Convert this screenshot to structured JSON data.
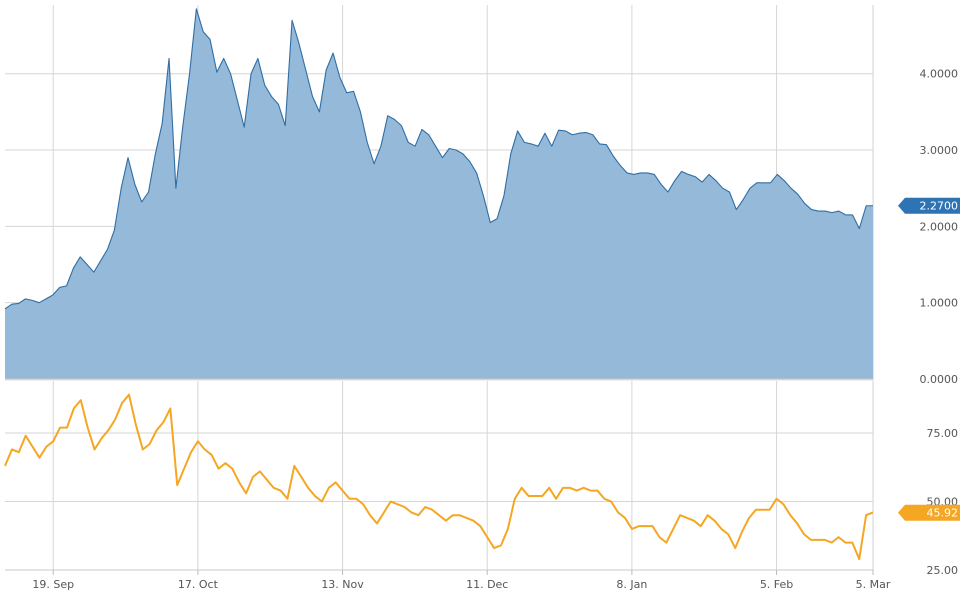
{
  "chart_data": [
    {
      "type": "area",
      "title": "",
      "xlabel": "",
      "ylabel": "",
      "ylim": [
        0,
        4.9
      ],
      "y_ticks": [
        "4.0000",
        "3.0000",
        "2.0000",
        "1.0000",
        "0.0000"
      ],
      "y_tick_values": [
        4,
        3,
        2,
        1,
        0
      ],
      "grid": true,
      "current_value_label": "2.2700",
      "current_value": 2.27,
      "colors": {
        "fill": "#95b9d8",
        "line": "#2f6ea5",
        "badge": "#2e74b5",
        "grid": "#d6d6d6"
      },
      "series": [
        {
          "values": [
            0.92,
            0.98,
            0.99,
            1.05,
            1.03,
            1.0,
            1.05,
            1.1,
            1.2,
            1.22,
            1.45,
            1.6,
            1.5,
            1.4,
            1.55,
            1.7,
            1.95,
            2.5,
            2.9,
            2.55,
            2.32,
            2.45,
            2.95,
            3.35,
            4.2,
            2.5,
            3.3,
            4.0,
            4.85,
            4.55,
            4.45,
            4.02,
            4.2,
            4.0,
            3.65,
            3.3,
            4.0,
            4.2,
            3.85,
            3.7,
            3.6,
            3.32,
            4.7,
            4.4,
            4.05,
            3.7,
            3.5,
            4.05,
            4.27,
            3.95,
            3.75,
            3.77,
            3.5,
            3.1,
            2.82,
            3.05,
            3.45,
            3.4,
            3.32,
            3.1,
            3.05,
            3.27,
            3.2,
            3.05,
            2.9,
            3.02,
            3.0,
            2.95,
            2.85,
            2.7,
            2.4,
            2.05,
            2.1,
            2.4,
            2.95,
            3.25,
            3.1,
            3.08,
            3.05,
            3.22,
            3.05,
            3.26,
            3.25,
            3.2,
            3.22,
            3.23,
            3.2,
            3.08,
            3.07,
            2.92,
            2.8,
            2.7,
            2.68,
            2.7,
            2.7,
            2.68,
            2.55,
            2.45,
            2.6,
            2.72,
            2.68,
            2.65,
            2.58,
            2.68,
            2.6,
            2.5,
            2.45,
            2.22,
            2.35,
            2.5,
            2.57,
            2.57,
            2.57,
            2.68,
            2.6,
            2.5,
            2.42,
            2.3,
            2.22,
            2.2,
            2.2,
            2.18,
            2.2,
            2.15,
            2.15,
            1.97,
            2.27,
            2.27
          ]
        }
      ]
    },
    {
      "type": "line",
      "title": "",
      "xlabel": "",
      "ylabel": "",
      "ylim": [
        25,
        94
      ],
      "y_ticks": [
        "75.00",
        "50.00",
        "25.00"
      ],
      "y_tick_values": [
        75,
        50,
        25
      ],
      "grid": true,
      "current_value_label": "45.92",
      "current_value": 45.92,
      "colors": {
        "line": "#f5a623",
        "badge": "#f5a623",
        "grid": "#d6d6d6"
      },
      "series": [
        {
          "values": [
            63,
            69,
            68,
            74,
            70,
            66,
            70,
            72,
            77,
            77,
            84,
            87,
            77,
            69,
            73,
            76,
            80,
            86,
            89,
            78,
            69,
            71,
            76,
            79,
            84,
            56,
            62,
            68,
            72,
            69,
            67,
            62,
            64,
            62,
            57,
            53,
            59,
            61,
            58,
            55,
            54,
            51,
            63,
            59,
            55,
            52,
            50,
            55,
            57,
            54,
            51,
            51,
            49,
            45,
            42,
            46,
            50,
            49,
            48,
            46,
            45,
            48,
            47,
            45,
            43,
            45,
            45,
            44,
            43,
            41,
            37,
            33,
            34,
            40,
            51,
            55,
            52,
            52,
            52,
            55,
            51,
            55,
            55,
            54,
            55,
            54,
            54,
            51,
            50,
            46,
            44,
            40,
            41,
            41,
            41,
            37,
            35,
            40,
            45,
            44,
            43,
            41,
            45,
            43,
            40,
            38,
            33,
            39,
            44,
            47,
            47,
            47,
            51,
            49,
            45,
            42,
            38,
            36,
            36,
            36,
            35,
            37,
            35,
            35,
            29,
            45,
            46
          ]
        }
      ],
      "x_tick_labels": [
        "19. Sep",
        "17. Oct",
        "13. Nov",
        "11. Dec",
        "8. Jan",
        "5. Feb",
        "5. Mar"
      ],
      "x_tick_indices": [
        7,
        28,
        49,
        70,
        91,
        112,
        126
      ]
    }
  ]
}
